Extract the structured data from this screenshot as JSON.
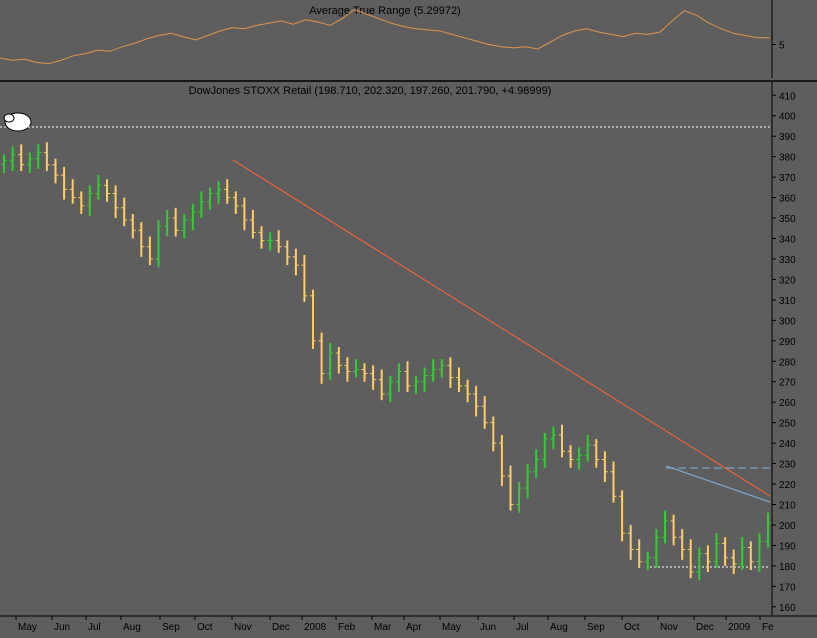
{
  "colors": {
    "background": "#5e5e5e",
    "axis_text": "#000000",
    "divider": "#000000",
    "up_bar": "#33cc33",
    "down_bar": "#ffcc66",
    "atr_line": "#e0944a",
    "downtrend_line": "#ff6633",
    "support_line": "#7fb2dc",
    "resistance_line": "#7fb2dc",
    "dotted_reference": "#ffffff"
  },
  "chart_data": [
    {
      "type": "line",
      "title": "Average True Range (5.29972)",
      "y_tick_labels": [
        "5"
      ],
      "ylim": [
        3.6,
        6.8
      ],
      "series": [
        {
          "values": [
            4.4,
            4.3,
            4.35,
            4.2,
            4.15,
            4.3,
            4.5,
            4.6,
            4.75,
            4.7,
            4.9,
            5.05,
            5.25,
            5.4,
            5.5,
            5.35,
            5.2,
            5.4,
            5.6,
            5.75,
            5.7,
            5.85,
            5.95,
            6.05,
            5.9,
            6.1,
            6.0,
            5.85,
            6.15,
            6.55,
            6.35,
            6.15,
            5.95,
            5.8,
            5.7,
            5.65,
            5.6,
            5.45,
            5.3,
            5.15,
            5.0,
            4.9,
            4.85,
            4.9,
            4.8,
            5.1,
            5.4,
            5.6,
            5.7,
            5.55,
            5.45,
            5.35,
            5.5,
            5.45,
            5.55,
            6.05,
            6.5,
            6.3,
            5.95,
            5.7,
            5.5,
            5.4,
            5.3,
            5.29972
          ]
        }
      ]
    },
    {
      "type": "bar",
      "title": "DowJones STOXX Retail (198.710, 202.320, 197.260, 201.790, +4.98999)",
      "y_tick_labels": [
        "160",
        "170",
        "180",
        "190",
        "200",
        "210",
        "220",
        "230",
        "240",
        "250",
        "260",
        "270",
        "280",
        "290",
        "300",
        "310",
        "320",
        "330",
        "340",
        "350",
        "360",
        "370",
        "380",
        "390",
        "400",
        "410"
      ],
      "x_tick_labels": [
        "May",
        "Jun",
        "Jul",
        "Aug",
        "Sep",
        "Oct",
        "Nov",
        "Dec",
        "2008",
        "Feb",
        "Mar",
        "Apr",
        "May",
        "Jun",
        "Jul",
        "Aug",
        "Sep",
        "Oct",
        "Nov",
        "Dec",
        "2009",
        "Fe"
      ],
      "ylim": [
        156,
        416
      ],
      "close_values": [
        378,
        381,
        376,
        379,
        382,
        376,
        371,
        364,
        360,
        356,
        362,
        366,
        362,
        355,
        349,
        344,
        336,
        330,
        346,
        350,
        344,
        349,
        353,
        358,
        362,
        364,
        360,
        356,
        349,
        343,
        339,
        339,
        336,
        331,
        327,
        312,
        290,
        274,
        284,
        278,
        275,
        276,
        274,
        271,
        264,
        270,
        275,
        268,
        270,
        273,
        276,
        278,
        272,
        268,
        264,
        258,
        250,
        240,
        224,
        210,
        218,
        226,
        232,
        242,
        244,
        236,
        232,
        234,
        239,
        232,
        226,
        214,
        196,
        188,
        182,
        184,
        194,
        202,
        194,
        188,
        177,
        186,
        182,
        191,
        184,
        181,
        189,
        182,
        192,
        201
      ],
      "annotations": [
        "downtrend-line",
        "support-line",
        "resistance-line",
        "low-reference-line",
        "high-reference-line"
      ]
    }
  ]
}
